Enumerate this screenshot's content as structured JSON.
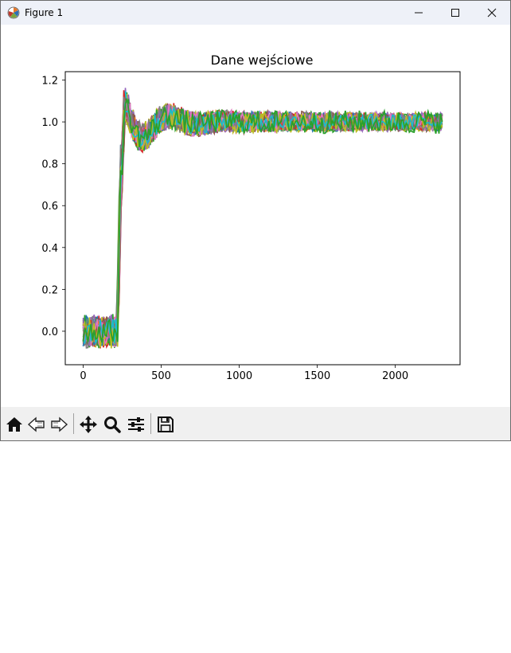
{
  "window": {
    "title": "Figure 1"
  },
  "toolbar": {
    "buttons": [
      {
        "name": "home-button",
        "icon": "home-icon"
      },
      {
        "name": "back-button",
        "icon": "back-arrow-icon"
      },
      {
        "name": "forward-button",
        "icon": "forward-arrow-icon"
      },
      {
        "name": "pan-button",
        "icon": "move-icon"
      },
      {
        "name": "zoom-button",
        "icon": "search-icon"
      },
      {
        "name": "configure-subplots-button",
        "icon": "sliders-icon"
      },
      {
        "name": "save-button",
        "icon": "floppy-disk-icon"
      }
    ]
  },
  "chart_data": {
    "type": "line",
    "title": "Dane wejściowe",
    "xlabel": "",
    "ylabel": "",
    "xlim": [
      -115,
      2415
    ],
    "ylim": [
      -0.16,
      1.24
    ],
    "x_ticks": [
      0,
      500,
      1000,
      1500,
      2000
    ],
    "x_tick_labels": [
      "0",
      "500",
      "1000",
      "1500",
      "2000"
    ],
    "y_ticks": [
      0.0,
      0.2,
      0.4,
      0.6,
      0.8,
      1.0,
      1.2
    ],
    "y_tick_labels": [
      "0.0",
      "0.2",
      "0.4",
      "0.6",
      "0.8",
      "1.0",
      "1.2"
    ],
    "grid": false,
    "series_colors": [
      "#1f77b4",
      "#ff7f0e",
      "#2ca02c",
      "#d62728",
      "#9467bd",
      "#8c564b",
      "#e377c2",
      "#7f7f7f",
      "#bcbd22",
      "#17becf"
    ],
    "x_range": [
      0,
      2300
    ],
    "step_x": 245,
    "pre_step_level": 0.0,
    "post_step_level": 1.0,
    "overshoot_peak": 1.16,
    "noise_amplitude": 0.07
  }
}
